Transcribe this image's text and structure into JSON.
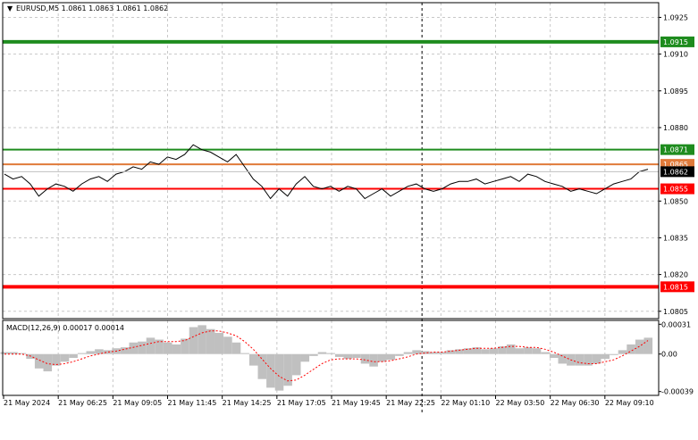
{
  "header": {
    "symbol_info": "EURUSD,M5  1.0861 1.0863 1.0861 1.0862"
  },
  "colors": {
    "grid": "#c8c8c8",
    "price_line": "#000000",
    "green_level": "#1e8c1e",
    "red_level": "#ff0000",
    "orange_level": "#e07a3a",
    "macd_hist": "#c0c0c0",
    "macd_signal": "#ff0000",
    "current_price_tag": "#000000"
  },
  "chart_data": {
    "type": "line",
    "main": {
      "ylim": [
        1.0802,
        1.0931
      ],
      "y_ticks": [
        "1.0925",
        "1.0910",
        "1.0895",
        "1.0880",
        "1.0850",
        "1.0835",
        "1.0820",
        "1.0805"
      ],
      "y_tick_values": [
        1.0925,
        1.091,
        1.0895,
        1.088,
        1.085,
        1.0835,
        1.082,
        1.0805
      ],
      "levels": [
        {
          "label": "1.0915",
          "value": 1.0915,
          "color": "green",
          "thick": true
        },
        {
          "label": "1.0871",
          "value": 1.0871,
          "color": "green",
          "thick": false
        },
        {
          "label": "1.0865",
          "value": 1.0865,
          "color": "orange",
          "thick": false
        },
        {
          "label": "1.0855",
          "value": 1.0855,
          "color": "red",
          "thick": false
        },
        {
          "label": "1.0815",
          "value": 1.0815,
          "color": "red",
          "thick": true
        }
      ],
      "current_price": {
        "label": "1.0862",
        "value": 1.0862
      },
      "close_series": [
        1.0861,
        1.0859,
        1.086,
        1.0857,
        1.0852,
        1.0855,
        1.0857,
        1.0856,
        1.0854,
        1.0857,
        1.0859,
        1.086,
        1.0858,
        1.0861,
        1.0862,
        1.0864,
        1.0863,
        1.0866,
        1.0865,
        1.0868,
        1.0867,
        1.0869,
        1.0873,
        1.0871,
        1.087,
        1.0868,
        1.0866,
        1.0869,
        1.0864,
        1.0859,
        1.0856,
        1.0851,
        1.0855,
        1.0852,
        1.0857,
        1.086,
        1.0856,
        1.0855,
        1.0856,
        1.0854,
        1.0856,
        1.0855,
        1.0851,
        1.0853,
        1.0855,
        1.0852,
        1.0854,
        1.0856,
        1.0857,
        1.0855,
        1.0854,
        1.0855,
        1.0857,
        1.0858,
        1.0858,
        1.0859,
        1.0857,
        1.0858,
        1.0859,
        1.086,
        1.0858,
        1.0861,
        1.086,
        1.0858,
        1.0857,
        1.0856,
        1.0854,
        1.0855,
        1.0854,
        1.0853,
        1.0855,
        1.0857,
        1.0858,
        1.0859,
        1.0862,
        1.0863
      ]
    },
    "macd": {
      "title": "MACD(12,26,9) 0.00017 0.00014",
      "ylim": [
        -0.00043,
        0.00035
      ],
      "y_ticks": [
        "0.00031",
        "0.00",
        "-0.00039"
      ],
      "y_tick_values": [
        0.00031,
        0.0,
        -0.00039
      ],
      "histogram": [
        2e-05,
        2e-05,
        1e-05,
        -5e-05,
        -0.00015,
        -0.00018,
        -0.00012,
        -8e-05,
        -4e-05,
        1e-05,
        3e-05,
        5e-05,
        4e-05,
        6e-05,
        7e-05,
        0.00012,
        0.00013,
        0.00017,
        0.00015,
        0.00012,
        0.0001,
        0.00016,
        0.00028,
        0.0003,
        0.00026,
        0.00022,
        0.00018,
        0.00012,
        1e-05,
        -0.00012,
        -0.00026,
        -0.00035,
        -0.00038,
        -0.00033,
        -0.00022,
        -8e-05,
        -2e-05,
        2e-05,
        1e-05,
        -3e-05,
        -5e-05,
        -4e-05,
        -0.0001,
        -0.00013,
        -8e-05,
        -6e-05,
        -2e-05,
        2e-05,
        4e-05,
        3e-05,
        2e-05,
        2e-05,
        4e-05,
        5e-05,
        6e-05,
        7e-05,
        5e-05,
        6e-05,
        8e-05,
        0.0001,
        6e-05,
        7e-05,
        6e-05,
        2e-05,
        -4e-05,
        -0.0001,
        -0.00012,
        -0.00012,
        -0.00012,
        -0.0001,
        -5e-05,
        -1e-05,
        4e-05,
        0.0001,
        0.00015,
        0.00017
      ],
      "signal": [
        0.0,
        0.0,
        0.0,
        -2e-05,
        -6e-05,
        -0.0001,
        -0.00011,
        -0.0001,
        -8e-05,
        -5e-05,
        -2e-05,
        0.0,
        2e-05,
        3e-05,
        5e-05,
        7e-05,
        9e-05,
        0.00011,
        0.00013,
        0.00013,
        0.00013,
        0.00014,
        0.00018,
        0.00022,
        0.00024,
        0.00024,
        0.00022,
        0.00019,
        0.00013,
        5e-05,
        -5e-05,
        -0.00015,
        -0.00023,
        -0.00028,
        -0.00027,
        -0.00022,
        -0.00016,
        -0.0001,
        -6e-05,
        -5e-05,
        -5e-05,
        -5e-05,
        -6e-05,
        -8e-05,
        -8e-05,
        -7e-05,
        -5e-05,
        -3e-05,
        0.0,
        1e-05,
        2e-05,
        2e-05,
        3e-05,
        4e-05,
        5e-05,
        6e-05,
        6e-05,
        6e-05,
        7e-05,
        8e-05,
        8e-05,
        7e-05,
        7e-05,
        5e-05,
        2e-05,
        -2e-05,
        -6e-05,
        -9e-05,
        -0.0001,
        -0.0001,
        -8e-05,
        -6e-05,
        -2e-05,
        3e-05,
        8e-05,
        0.00014
      ]
    },
    "x_ticks": [
      "21 May 2024",
      "21 May 06:25",
      "21 May 09:05",
      "21 May 11:45",
      "21 May 14:25",
      "21 May 17:05",
      "21 May 19:45",
      "21 May 22:25",
      "22 May 01:10",
      "22 May 03:50",
      "22 May 06:30",
      "22 May 09:10"
    ],
    "grid": true,
    "vertical_marker_after_tick": "21 May 22:25"
  }
}
